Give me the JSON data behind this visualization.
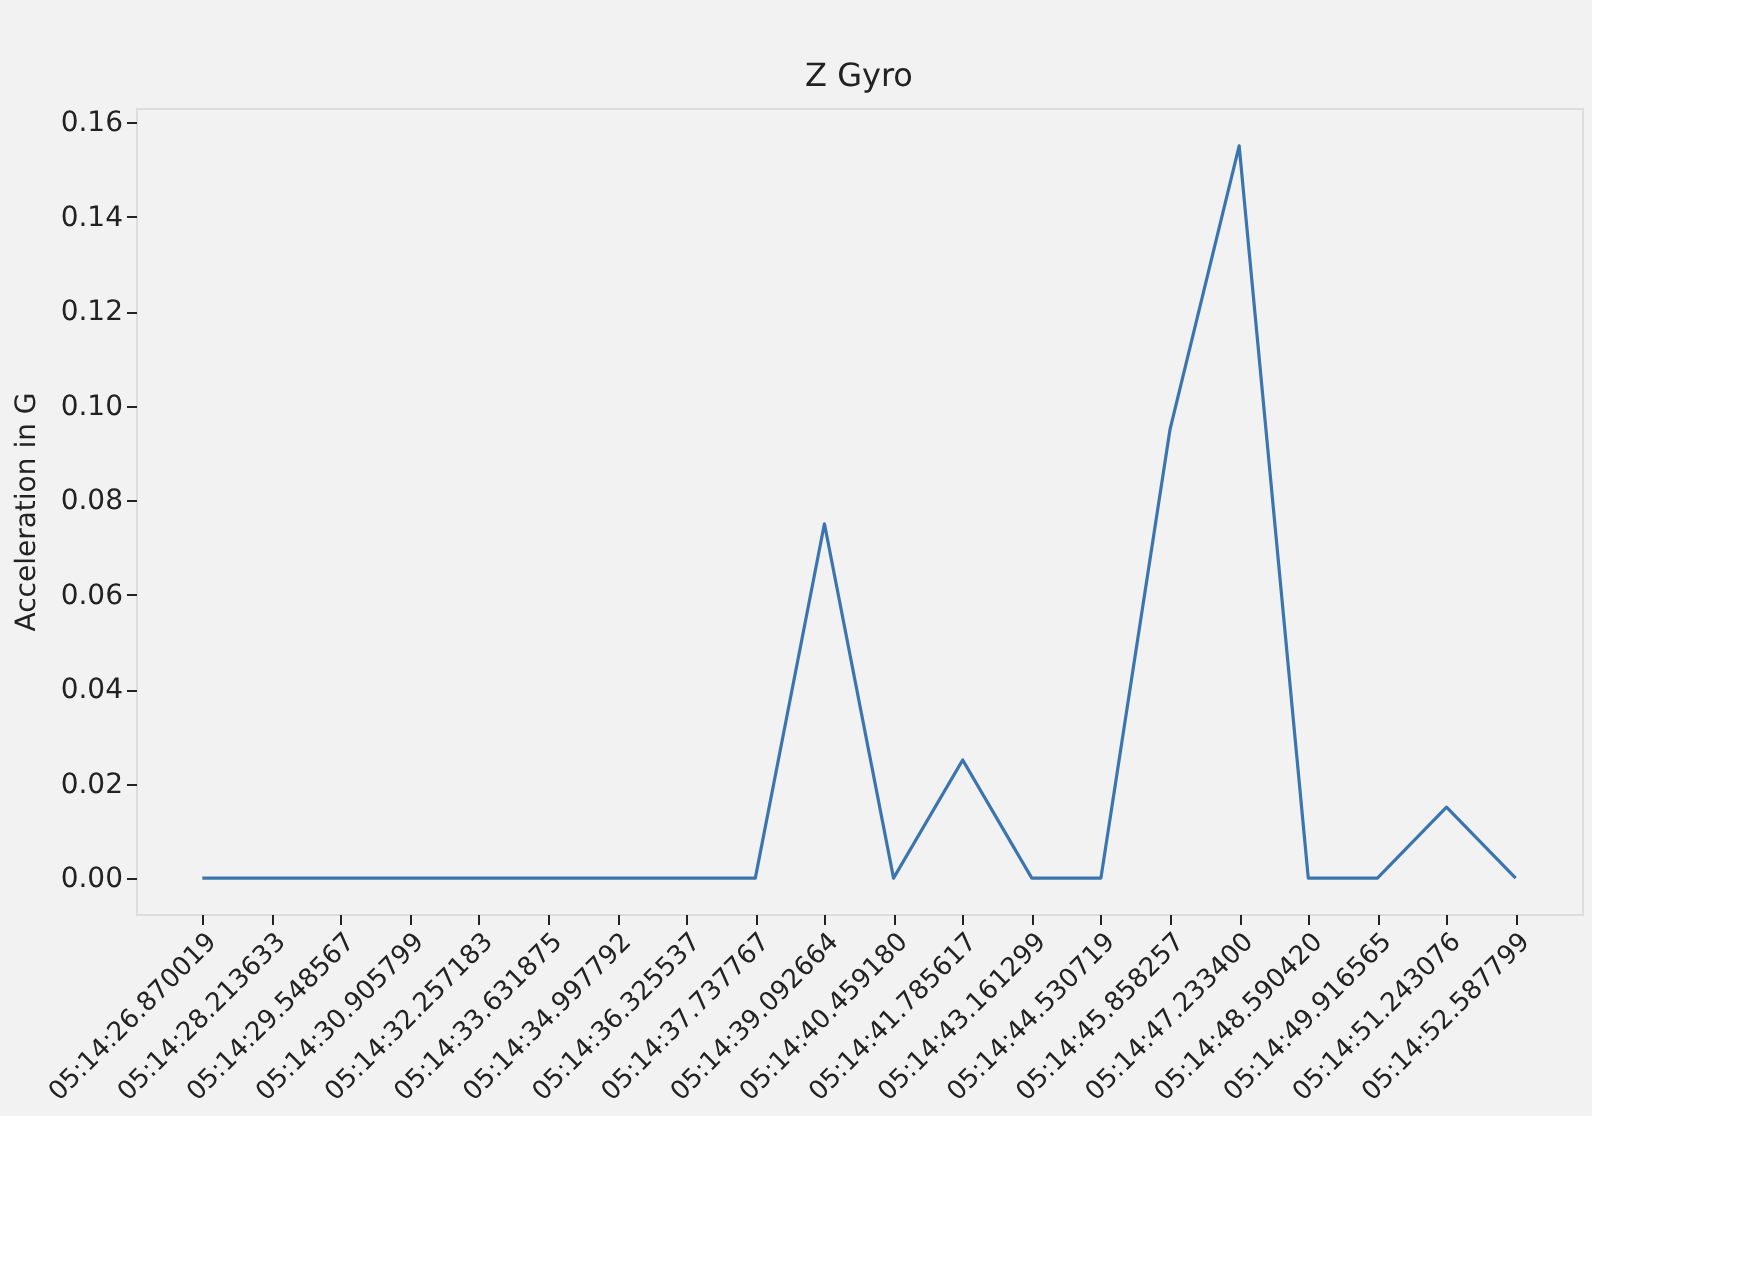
{
  "chart_data": {
    "type": "line",
    "title": "Z Gyro",
    "ylabel": "Acceleration in G",
    "categories": [
      "05:14:26.870019",
      "05:14:28.213633",
      "05:14:29.548567",
      "05:14:30.905799",
      "05:14:32.257183",
      "05:14:33.631875",
      "05:14:34.997792",
      "05:14:36.325537",
      "05:14:37.737767",
      "05:14:39.092664",
      "05:14:40.459180",
      "05:14:41.785617",
      "05:14:43.161299",
      "05:14:44.530719",
      "05:14:45.858257",
      "05:14:47.233400",
      "05:14:48.590420",
      "05:14:49.916565",
      "05:14:51.243076",
      "05:14:52.587799"
    ],
    "series": [
      {
        "color": "#3b75af",
        "values": [
          0,
          0,
          0,
          0,
          0,
          0,
          0,
          0,
          0,
          0.075,
          0,
          0.025,
          0,
          0,
          0.095,
          0.155,
          0,
          0,
          0.015,
          0
        ]
      }
    ],
    "ylim": [
      -0.0076,
      0.163
    ],
    "yticks": [
      {
        "value": 0,
        "label": "0.00"
      },
      0.02,
      0.04,
      0.06,
      0.08,
      {
        "value": 0.1,
        "label": "0.10"
      },
      0.12,
      0.14,
      0.16
    ],
    "grid": false,
    "marker": "none",
    "line_style": "solid"
  }
}
